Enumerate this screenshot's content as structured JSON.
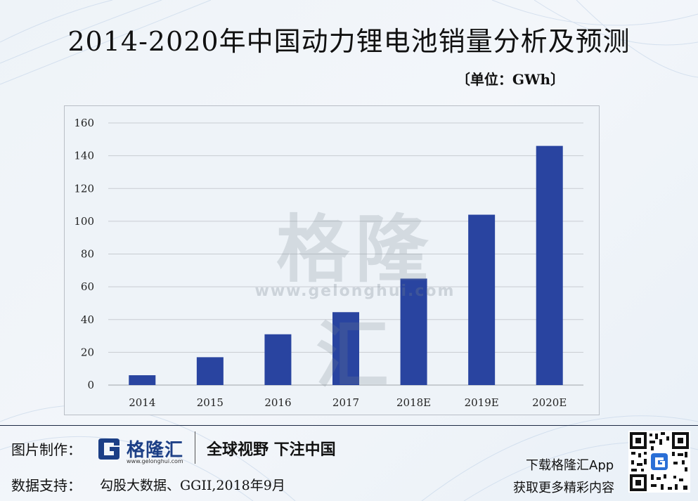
{
  "page": {
    "title": "2014-2020年中国动力锂电池销量分析及预测",
    "unit": "〔单位：GWh〕",
    "watermark": "格隆汇",
    "watermark_url": "www.gelonghui.com"
  },
  "chart_data": {
    "type": "bar",
    "title": "2014-2020年中国动力锂电池销量分析及预测",
    "ylabel": "GWh",
    "xlabel": "",
    "categories": [
      "2014",
      "2015",
      "2016",
      "2017",
      "2018E",
      "2019E",
      "2020E"
    ],
    "values": [
      6,
      17,
      31,
      44.5,
      65,
      104,
      146
    ],
    "ylim": [
      0,
      160
    ],
    "yticks": [
      0,
      20,
      40,
      60,
      80,
      100,
      120,
      140,
      160
    ],
    "grid": true,
    "bar_color": "#2944a0"
  },
  "footer": {
    "maker_label": "图片制作：",
    "logo_name": "格隆汇",
    "logo_url": "www.gelonghui.com",
    "slogan": "全球视野 下注中国",
    "source_label": "数据支持：",
    "source_text": "勾股大数据、GGII,2018年9月",
    "download_line1": "下载格隆汇App",
    "download_line2": "获取更多精彩内容"
  },
  "colors": {
    "brand": "#1c3f86",
    "bar": "#2944a0",
    "grid": "#c8ccd2"
  }
}
